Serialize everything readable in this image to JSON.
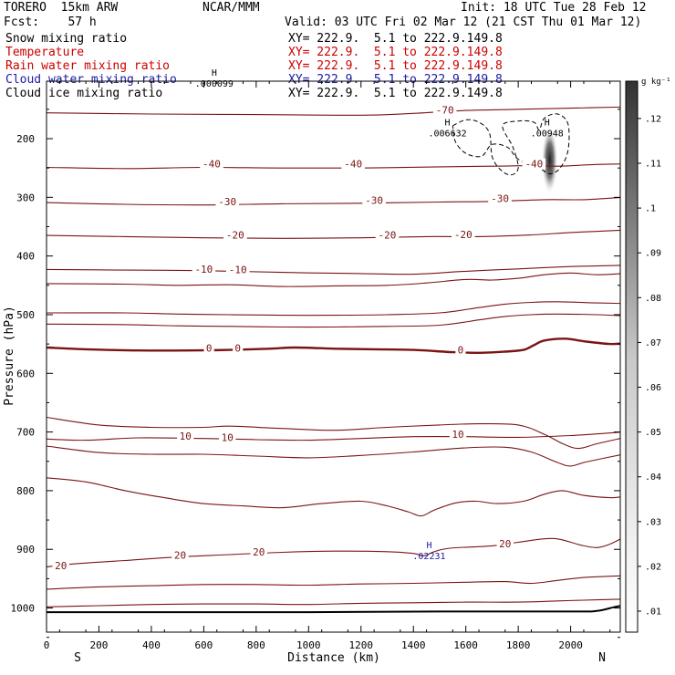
{
  "header": {
    "model": "TORERO  15km ARW",
    "org": "NCAR/MMM",
    "init": "Init: 18 UTC Tue 28 Feb 12",
    "fcst": "Fcst:    57 h",
    "valid": "Valid: 03 UTC Fri 02 Mar 12 (21 CST Thu 01 Mar 12)"
  },
  "fields": [
    {
      "label": "Snow mixing ratio",
      "xy": "XY= 222.9.  5.1 to 222.9.149.8",
      "color": "#000000"
    },
    {
      "label": "Temperature",
      "xy": "XY= 222.9.  5.1 to 222.9.149.8",
      "color": "#cc0000"
    },
    {
      "label": "Rain water mixing ratio",
      "xy": "XY= 222.9.  5.1 to 222.9.149.8",
      "color": "#cc0000"
    },
    {
      "label": "Cloud water mixing ratio",
      "xy": "XY= 222.9.  5.1 to 222.9.149.8",
      "color": "#1a1aa0"
    },
    {
      "label": "Cloud ice mixing ratio",
      "xy": "XY= 222.9.  5.1 to 222.9.149.8",
      "color": "#000000"
    }
  ],
  "chart_data": {
    "type": "contour",
    "xlabel": "Distance (km)",
    "ylabel": "Pressure (hPa)",
    "xlim": [
      0,
      2200
    ],
    "ylim": [
      1050,
      100
    ],
    "x_ticks": [
      0,
      200,
      400,
      600,
      800,
      1000,
      1200,
      1400,
      1600,
      1800,
      2000
    ],
    "y_ticks": [
      200,
      300,
      400,
      500,
      600,
      700,
      800,
      900,
      1000
    ],
    "end_labels": {
      "left": "S",
      "right": "N"
    },
    "colorbar": {
      "units": "g kg⁻¹",
      "ticks": [
        ".01",
        ".02",
        ".03",
        ".04",
        ".05",
        ".06",
        ".07",
        ".08",
        ".09",
        ".1",
        ".11",
        ".12"
      ],
      "low_color": "#ffffff",
      "high_color": "#333333"
    },
    "temperature_isotherms": [
      {
        "level": 450,
        "pts": [
          [
            0,
            447
          ],
          [
            300,
            448
          ],
          [
            500,
            450
          ],
          [
            700,
            449
          ],
          [
            900,
            452
          ],
          [
            1100,
            451
          ],
          [
            1300,
            450
          ],
          [
            1450,
            446
          ],
          [
            1600,
            440
          ],
          [
            1700,
            441
          ],
          [
            1800,
            438
          ],
          [
            1900,
            432
          ],
          [
            2000,
            429
          ],
          [
            2100,
            432
          ],
          [
            2200,
            430
          ]
        ]
      },
      {
        "level": 500,
        "pts": [
          [
            0,
            497
          ],
          [
            300,
            497
          ],
          [
            500,
            499
          ],
          [
            700,
            500
          ],
          [
            900,
            501
          ],
          [
            1100,
            501
          ],
          [
            1300,
            500
          ],
          [
            1500,
            497
          ],
          [
            1650,
            488
          ],
          [
            1750,
            482
          ],
          [
            1850,
            479
          ],
          [
            1950,
            478
          ],
          [
            2100,
            480
          ],
          [
            2200,
            481
          ]
        ]
      },
      {
        "level": 520,
        "pts": [
          [
            0,
            516
          ],
          [
            300,
            517
          ],
          [
            500,
            519
          ],
          [
            700,
            520
          ],
          [
            900,
            521
          ],
          [
            1100,
            521
          ],
          [
            1300,
            520
          ],
          [
            1500,
            518
          ],
          [
            1650,
            509
          ],
          [
            1750,
            503
          ],
          [
            1850,
            500
          ],
          [
            1950,
            499
          ],
          [
            2100,
            500
          ],
          [
            2200,
            502
          ]
        ]
      },
      {
        "level": 680,
        "pts": [
          [
            0,
            675
          ],
          [
            200,
            688
          ],
          [
            400,
            692
          ],
          [
            600,
            692
          ],
          [
            700,
            690
          ],
          [
            900,
            694
          ],
          [
            1100,
            697
          ],
          [
            1300,
            692
          ],
          [
            1500,
            688
          ],
          [
            1650,
            686
          ],
          [
            1800,
            688
          ],
          [
            1900,
            704
          ],
          [
            1970,
            720
          ],
          [
            2030,
            728
          ],
          [
            2100,
            720
          ],
          [
            2200,
            710
          ]
        ]
      },
      {
        "level": 730,
        "pts": [
          [
            0,
            724
          ],
          [
            200,
            735
          ],
          [
            400,
            738
          ],
          [
            600,
            738
          ],
          [
            800,
            741
          ],
          [
            1000,
            744
          ],
          [
            1200,
            740
          ],
          [
            1400,
            734
          ],
          [
            1600,
            727
          ],
          [
            1750,
            726
          ],
          [
            1850,
            734
          ],
          [
            1950,
            752
          ],
          [
            2000,
            758
          ],
          [
            2060,
            751
          ],
          [
            2200,
            738
          ]
        ]
      },
      {
        "level": 780,
        "pts": [
          [
            0,
            778
          ],
          [
            150,
            785
          ],
          [
            300,
            800
          ],
          [
            450,
            812
          ],
          [
            600,
            822
          ],
          [
            750,
            826
          ],
          [
            900,
            829
          ],
          [
            1050,
            822
          ],
          [
            1200,
            818
          ],
          [
            1300,
            826
          ],
          [
            1380,
            836
          ],
          [
            1430,
            843
          ],
          [
            1480,
            833
          ],
          [
            1560,
            821
          ],
          [
            1640,
            818
          ],
          [
            1720,
            822
          ],
          [
            1820,
            818
          ],
          [
            1900,
            806
          ],
          [
            1970,
            800
          ],
          [
            2050,
            808
          ],
          [
            2150,
            812
          ],
          [
            2200,
            810
          ]
        ]
      },
      {
        "level": 960,
        "pts": [
          [
            0,
            968
          ],
          [
            200,
            964
          ],
          [
            400,
            962
          ],
          [
            600,
            960
          ],
          [
            800,
            960
          ],
          [
            1000,
            961
          ],
          [
            1200,
            959
          ],
          [
            1400,
            958
          ],
          [
            1600,
            956
          ],
          [
            1750,
            955
          ],
          [
            1850,
            958
          ],
          [
            1950,
            953
          ],
          [
            2050,
            948
          ],
          [
            2200,
            945
          ]
        ]
      },
      {
        "level": 990,
        "pts": [
          [
            0,
            998
          ],
          [
            200,
            996
          ],
          [
            400,
            994
          ],
          [
            600,
            993
          ],
          [
            800,
            993
          ],
          [
            1000,
            994
          ],
          [
            1200,
            992
          ],
          [
            1400,
            991
          ],
          [
            1600,
            990
          ],
          [
            1800,
            990
          ],
          [
            1950,
            988
          ],
          [
            2100,
            986
          ],
          [
            2200,
            985
          ]
        ]
      }
    ],
    "named_isotherms": [
      {
        "value": "-70",
        "pts": [
          [
            0,
            156
          ],
          [
            400,
            158
          ],
          [
            800,
            159
          ],
          [
            1200,
            160
          ],
          [
            1400,
            157
          ],
          [
            1600,
            152
          ],
          [
            1800,
            150
          ],
          [
            2000,
            148
          ],
          [
            2200,
            146
          ]
        ]
      },
      {
        "value": "-40",
        "pts": [
          [
            0,
            249
          ],
          [
            300,
            251
          ],
          [
            600,
            249
          ],
          [
            900,
            250
          ],
          [
            1200,
            250
          ],
          [
            1500,
            248
          ],
          [
            1700,
            247
          ],
          [
            1850,
            246
          ],
          [
            1950,
            247
          ],
          [
            2100,
            244
          ],
          [
            2200,
            243
          ]
        ]
      },
      {
        "value": "-30",
        "pts": [
          [
            0,
            309
          ],
          [
            300,
            312
          ],
          [
            600,
            313
          ],
          [
            900,
            311
          ],
          [
            1200,
            310
          ],
          [
            1500,
            308
          ],
          [
            1700,
            307
          ],
          [
            1900,
            304
          ],
          [
            2050,
            304
          ],
          [
            2200,
            300
          ]
        ]
      },
      {
        "value": "-20",
        "pts": [
          [
            0,
            365
          ],
          [
            300,
            367
          ],
          [
            600,
            369
          ],
          [
            900,
            370
          ],
          [
            1200,
            369
          ],
          [
            1450,
            367
          ],
          [
            1650,
            367
          ],
          [
            1850,
            364
          ],
          [
            2000,
            360
          ],
          [
            2200,
            356
          ]
        ]
      },
      {
        "value": "-10",
        "pts": [
          [
            0,
            423
          ],
          [
            300,
            424
          ],
          [
            600,
            425
          ],
          [
            900,
            428
          ],
          [
            1200,
            430
          ],
          [
            1400,
            431
          ],
          [
            1600,
            426
          ],
          [
            1800,
            422
          ],
          [
            2000,
            418
          ],
          [
            2200,
            416
          ]
        ]
      },
      {
        "value": "0",
        "pts": [
          [
            0,
            556
          ],
          [
            150,
            559
          ],
          [
            350,
            561
          ],
          [
            550,
            561
          ],
          [
            700,
            560
          ],
          [
            850,
            558
          ],
          [
            950,
            556
          ],
          [
            1100,
            558
          ],
          [
            1250,
            559
          ],
          [
            1400,
            560
          ],
          [
            1550,
            564
          ],
          [
            1650,
            565
          ],
          [
            1750,
            563
          ],
          [
            1820,
            560
          ],
          [
            1860,
            552
          ],
          [
            1900,
            544
          ],
          [
            1980,
            541
          ],
          [
            2060,
            546
          ],
          [
            2150,
            550
          ],
          [
            2200,
            549
          ]
        ]
      },
      {
        "value": "10",
        "pts": [
          [
            0,
            712
          ],
          [
            150,
            714
          ],
          [
            350,
            710
          ],
          [
            600,
            711
          ],
          [
            800,
            713
          ],
          [
            1000,
            714
          ],
          [
            1200,
            711
          ],
          [
            1400,
            708
          ],
          [
            1600,
            708
          ],
          [
            1800,
            709
          ],
          [
            2000,
            706
          ],
          [
            2200,
            700
          ]
        ]
      },
      {
        "value": "20",
        "pts": [
          [
            0,
            930
          ],
          [
            100,
            925
          ],
          [
            300,
            919
          ],
          [
            500,
            913
          ],
          [
            700,
            909
          ],
          [
            900,
            905
          ],
          [
            1100,
            903
          ],
          [
            1300,
            904
          ],
          [
            1400,
            907
          ],
          [
            1440,
            911
          ],
          [
            1480,
            904
          ],
          [
            1540,
            898
          ],
          [
            1700,
            894
          ],
          [
            1800,
            888
          ],
          [
            1900,
            882
          ],
          [
            1960,
            883
          ],
          [
            2040,
            893
          ],
          [
            2100,
            897
          ],
          [
            2150,
            891
          ],
          [
            2200,
            880
          ]
        ]
      }
    ],
    "contour_labels": [
      {
        "text": "-70",
        "x": 1520,
        "p": 151
      },
      {
        "text": "-40",
        "x": 630,
        "p": 243
      },
      {
        "text": "-40",
        "x": 1170,
        "p": 243
      },
      {
        "text": "-40",
        "x": 1860,
        "p": 243
      },
      {
        "text": "-30",
        "x": 690,
        "p": 307
      },
      {
        "text": "-30",
        "x": 1250,
        "p": 305
      },
      {
        "text": "-30",
        "x": 1730,
        "p": 302
      },
      {
        "text": "-20",
        "x": 720,
        "p": 364
      },
      {
        "text": "-20",
        "x": 1300,
        "p": 364
      },
      {
        "text": "-20",
        "x": 1590,
        "p": 363
      },
      {
        "text": "-10",
        "x": 600,
        "p": 422
      },
      {
        "text": "-10",
        "x": 730,
        "p": 423
      },
      {
        "text": "0",
        "x": 620,
        "p": 557
      },
      {
        "text": "0",
        "x": 730,
        "p": 557
      },
      {
        "text": "0",
        "x": 1580,
        "p": 560
      },
      {
        "text": "10",
        "x": 530,
        "p": 707
      },
      {
        "text": "10",
        "x": 690,
        "p": 709
      },
      {
        "text": "10",
        "x": 1570,
        "p": 704
      },
      {
        "text": "20",
        "x": 55,
        "p": 928
      },
      {
        "text": "20",
        "x": 510,
        "p": 910
      },
      {
        "text": "20",
        "x": 810,
        "p": 904
      },
      {
        "text": "20",
        "x": 1750,
        "p": 890
      }
    ],
    "maxima": [
      {
        "text": ".000099",
        "x": 640,
        "p": 108,
        "color": "#000000"
      },
      {
        "text": ".006632",
        "x": 1530,
        "p": 193,
        "color": "#000000"
      },
      {
        "text": ".00948",
        "x": 1910,
        "p": 193,
        "color": "#000000"
      },
      {
        "text": ".02231",
        "x": 1460,
        "p": 914,
        "color": "#1a1aa0"
      }
    ],
    "snow_core": {
      "x": 1920,
      "p_top": 190,
      "p_bottom": 295
    },
    "ice_region_dashed": [
      [
        1550,
        178
      ],
      [
        1600,
        168
      ],
      [
        1650,
        172
      ],
      [
        1690,
        190
      ],
      [
        1700,
        230
      ],
      [
        1730,
        252
      ],
      [
        1770,
        262
      ],
      [
        1800,
        250
      ],
      [
        1780,
        215
      ],
      [
        1740,
        178
      ],
      [
        1800,
        170
      ],
      [
        1860,
        172
      ],
      [
        1880,
        185
      ],
      [
        1900,
        165
      ],
      [
        1950,
        158
      ],
      [
        1990,
        175
      ],
      [
        1990,
        220
      ],
      [
        1960,
        250
      ],
      [
        1920,
        260
      ],
      [
        1880,
        250
      ],
      [
        1800,
        235
      ],
      [
        1760,
        215
      ],
      [
        1700,
        210
      ],
      [
        1660,
        230
      ],
      [
        1600,
        225
      ],
      [
        1560,
        205
      ],
      [
        1550,
        178
      ]
    ],
    "surface_pressure": [
      [
        0,
        1007
      ],
      [
        500,
        1007
      ],
      [
        1000,
        1007
      ],
      [
        1500,
        1006
      ],
      [
        2000,
        1006
      ],
      [
        2100,
        1005
      ],
      [
        2170,
        998
      ],
      [
        2200,
        996
      ]
    ]
  }
}
